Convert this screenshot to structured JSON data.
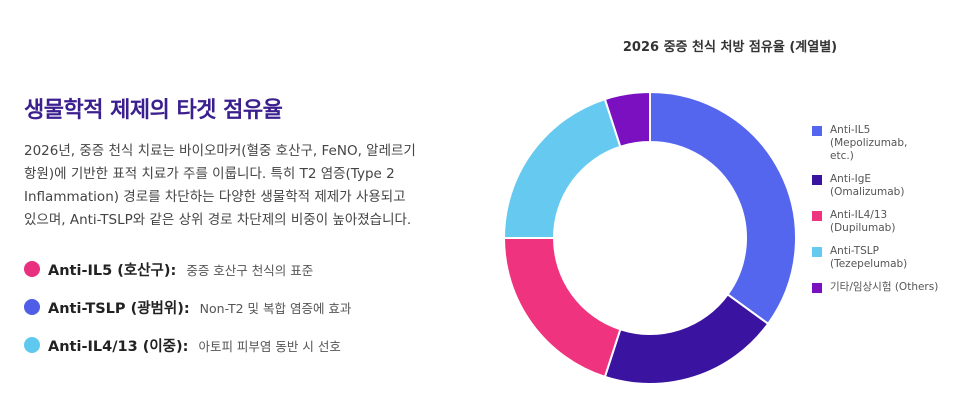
{
  "info": {
    "title": "생물학적 제제의 타겟 점유율",
    "description": "2026년, 중증 천식 치료는 바이오마커(혈중 호산구, FeNO, 알레르기\n항원)에 기반한 표적 치료가 주를 이룹니다. 특히 T2 염증(Type 2\nInflammation) 경로를 차단하는 다양한 생물학적 제제가 사용되고\n있으며, Anti-TSLP와 같은 상위 경로 차단제의 비중이 높아졌습니다.",
    "bullets": [
      {
        "name": "Anti-IL5 (호산구):",
        "note": "중증 호산구 천식의 표준",
        "color": "#e8307f"
      },
      {
        "name": "Anti-TSLP (광범위):",
        "note": "Non-T2 및 복합 염증에 효과",
        "color": "#4f5ee6"
      },
      {
        "name": "Anti-IL4/13 (이중):",
        "note": "아토피 피부염 동반 시 선호",
        "color": "#5fc8ef"
      }
    ]
  },
  "chart_data": {
    "type": "pie",
    "variant": "donut",
    "title": "2026 중증 천식 처방 점유율 (계열별)",
    "legend_position": "right",
    "slices": [
      {
        "label": "Anti-IL5\n(Mepolizumab,\netc.)",
        "value": 35,
        "color": "#5566ee"
      },
      {
        "label": "Anti-IgE\n(Omalizumab)",
        "value": 20,
        "color": "#3a14a0"
      },
      {
        "label": "Anti-IL4/13\n(Dupilumab)",
        "value": 20,
        "color": "#f0337f"
      },
      {
        "label": "Anti-TSLP\n(Tezepelumab)",
        "value": 20,
        "color": "#66c9f0"
      },
      {
        "label": "기타/임상시험 (Others)",
        "value": 5,
        "color": "#7a10c0"
      }
    ]
  }
}
